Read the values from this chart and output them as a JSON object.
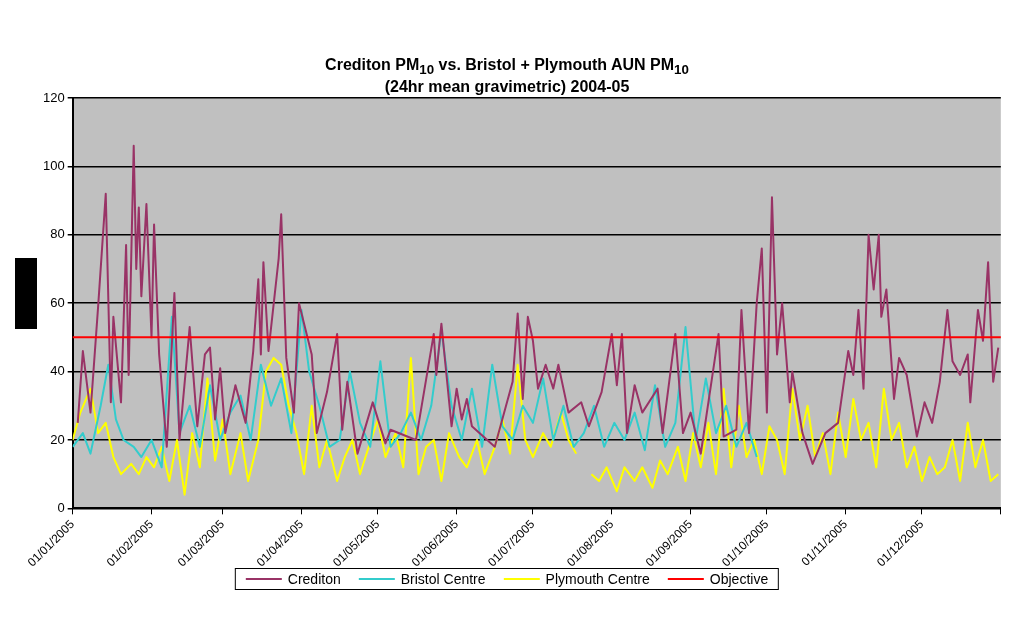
{
  "chart_data": {
    "type": "line",
    "title": "Crediton PM$_{10}$ vs. Bristol + Plymouth AUN PM$_{10}$",
    "subtitle": "(24hr mean gravimetric) 2004-05",
    "ylim": [
      0,
      120
    ],
    "yticks": [
      0,
      20,
      40,
      60,
      80,
      100,
      120
    ],
    "xlim": [
      "2005-01-01",
      "2006-01-01"
    ],
    "xticks": [
      {
        "value": "2005-01-01",
        "label": "01/01/2005"
      },
      {
        "value": "2005-02-01",
        "label": "01/02/2005"
      },
      {
        "value": "2005-03-01",
        "label": "01/03/2005"
      },
      {
        "value": "2005-04-01",
        "label": "01/04/2005"
      },
      {
        "value": "2005-05-01",
        "label": "01/05/2005"
      },
      {
        "value": "2005-06-01",
        "label": "01/06/2005"
      },
      {
        "value": "2005-07-01",
        "label": "01/07/2005"
      },
      {
        "value": "2005-08-01",
        "label": "01/08/2005"
      },
      {
        "value": "2005-09-01",
        "label": "01/09/2005"
      },
      {
        "value": "2005-10-01",
        "label": "01/10/2005"
      },
      {
        "value": "2005-11-01",
        "label": "01/11/2005"
      },
      {
        "value": "2005-12-01",
        "label": "01/12/2005"
      },
      {
        "value": "2006-01-01",
        "label": null
      }
    ],
    "grid": "y",
    "legend": "bottom",
    "marker": "none",
    "line_style": "solid",
    "ref_lines": [
      {
        "axis": "y",
        "value": 50,
        "label": "Objective",
        "color": "#ff0000"
      }
    ],
    "series": [
      {
        "name": "Crediton",
        "color": "#993366",
        "x": [
          "2005-01-03",
          "2005-01-05",
          "2005-01-08",
          "2005-01-11",
          "2005-01-14",
          "2005-01-16",
          "2005-01-17",
          "2005-01-20",
          "2005-01-22",
          "2005-01-23",
          "2005-01-25",
          "2005-01-26",
          "2005-01-27",
          "2005-01-28",
          "2005-01-30",
          "2005-02-01",
          "2005-02-02",
          "2005-02-04",
          "2005-02-07",
          "2005-02-10",
          "2005-02-12",
          "2005-02-16",
          "2005-02-19",
          "2005-02-22",
          "2005-02-24",
          "2005-02-26",
          "2005-02-28",
          "2005-03-02",
          "2005-03-06",
          "2005-03-10",
          "2005-03-13",
          "2005-03-15",
          "2005-03-16",
          "2005-03-17",
          "2005-03-19",
          "2005-03-23",
          "2005-03-24",
          "2005-03-26",
          "2005-03-29",
          "2005-03-31",
          "2005-04-05",
          "2005-04-07",
          "2005-04-11",
          "2005-04-15",
          "2005-04-17",
          "2005-04-19",
          "2005-04-23",
          "2005-04-29",
          "2005-05-04",
          "2005-05-06",
          "2005-05-16",
          "2005-05-23",
          "2005-05-24",
          "2005-05-26",
          "2005-05-28",
          "2005-05-30",
          "2005-06-01",
          "2005-06-03",
          "2005-06-05",
          "2005-06-07",
          "2005-06-16",
          "2005-06-23",
          "2005-06-25",
          "2005-06-27",
          "2005-06-29",
          "2005-07-01",
          "2005-07-03",
          "2005-07-06",
          "2005-07-09",
          "2005-07-11",
          "2005-07-15",
          "2005-07-20",
          "2005-07-23",
          "2005-07-28",
          "2005-08-01",
          "2005-08-03",
          "2005-08-05",
          "2005-08-07",
          "2005-08-10",
          "2005-08-13",
          "2005-08-19",
          "2005-08-21",
          "2005-08-26",
          "2005-08-29",
          "2005-09-01",
          "2005-09-05",
          "2005-09-12",
          "2005-09-14",
          "2005-09-19",
          "2005-09-21",
          "2005-09-24",
          "2005-09-27",
          "2005-09-29",
          "2005-10-01",
          "2005-10-03",
          "2005-10-05",
          "2005-10-07",
          "2005-10-10",
          "2005-10-11",
          "2005-10-15",
          "2005-10-19",
          "2005-10-24",
          "2005-10-29",
          "2005-11-02",
          "2005-11-04",
          "2005-11-06",
          "2005-11-08",
          "2005-11-10",
          "2005-11-12",
          "2005-11-14",
          "2005-11-15",
          "2005-11-17",
          "2005-11-20",
          "2005-11-22",
          "2005-11-25",
          "2005-11-29",
          "2005-12-02",
          "2005-12-05",
          "2005-12-08",
          "2005-12-11",
          "2005-12-13",
          "2005-12-16",
          "2005-12-19",
          "2005-12-20",
          "2005-12-23",
          "2005-12-25",
          "2005-12-27",
          "2005-12-29",
          "2005-12-31"
        ],
        "values": [
          25,
          46,
          28,
          59,
          92,
          31,
          56,
          31,
          77,
          39,
          106,
          70,
          88,
          62,
          89,
          50,
          83,
          45,
          18,
          63,
          20,
          53,
          24,
          45,
          47,
          26,
          41,
          22,
          36,
          25,
          46,
          67,
          45,
          72,
          46,
          73,
          86,
          44,
          28,
          60,
          45,
          22,
          34,
          51,
          23,
          37,
          16,
          31,
          19,
          23,
          20,
          51,
          39,
          54,
          39,
          24,
          35,
          26,
          32,
          24,
          18,
          37,
          57,
          32,
          56,
          49,
          35,
          42,
          35,
          42,
          28,
          31,
          24,
          34,
          51,
          36,
          51,
          22,
          36,
          28,
          35,
          22,
          51,
          22,
          28,
          16,
          51,
          21,
          23,
          58,
          22,
          60,
          76,
          28,
          91,
          45,
          60,
          31,
          40,
          22,
          13,
          22,
          25,
          46,
          39,
          58,
          35,
          80,
          64,
          80,
          56,
          64,
          32,
          44,
          39,
          21,
          31,
          25,
          37,
          58,
          43,
          39,
          45,
          31,
          58,
          49,
          72,
          37,
          47
        ]
      },
      {
        "name": "Bristol Centre",
        "color": "#33cccc",
        "x": [
          "2005-01-01",
          "2005-01-05",
          "2005-01-08",
          "2005-01-12",
          "2005-01-15",
          "2005-01-18",
          "2005-01-21",
          "2005-01-25",
          "2005-01-28",
          "2005-02-01",
          "2005-02-05",
          "2005-02-09",
          "2005-02-12",
          "2005-02-16",
          "2005-02-20",
          "2005-02-24",
          "2005-02-28",
          "2005-03-04",
          "2005-03-08",
          "2005-03-12",
          "2005-03-16",
          "2005-03-20",
          "2005-03-24",
          "2005-03-28",
          "2005-04-01",
          "2005-04-04",
          "2005-04-08",
          "2005-04-12",
          "2005-04-16",
          "2005-04-20",
          "2005-04-24",
          "2005-04-28",
          "2005-05-02",
          "2005-05-06",
          "2005-05-10",
          "2005-05-14",
          "2005-05-18",
          "2005-05-22",
          "2005-05-26",
          "2005-05-30",
          "2005-06-03",
          "2005-06-07",
          "2005-06-11",
          "2005-06-15",
          "2005-06-19",
          "2005-06-23",
          "2005-06-27",
          "2005-07-01",
          "2005-07-05",
          "2005-07-09",
          "2005-07-13",
          "2005-07-17",
          "2005-07-21",
          "2005-07-25",
          "2005-07-29",
          "2005-08-02",
          "2005-08-06",
          "2005-08-10",
          "2005-08-14",
          "2005-08-18",
          "2005-08-22",
          "2005-08-26",
          "2005-08-30",
          "2005-09-03",
          "2005-09-07",
          "2005-09-11",
          "2005-09-15",
          "2005-09-19",
          "2005-09-23",
          "2005-09-27"
        ],
        "values": [
          18,
          22,
          16,
          30,
          42,
          26,
          20,
          18,
          15,
          20,
          12,
          56,
          22,
          30,
          18,
          36,
          20,
          28,
          33,
          20,
          42,
          30,
          38,
          22,
          58,
          40,
          30,
          18,
          20,
          40,
          25,
          18,
          43,
          18,
          22,
          28,
          20,
          30,
          52,
          30,
          20,
          35,
          18,
          42,
          24,
          20,
          30,
          25,
          38,
          20,
          30,
          18,
          22,
          30,
          18,
          25,
          20,
          28,
          17,
          36,
          18,
          25,
          53,
          20,
          38,
          22,
          30,
          18,
          25,
          15
        ]
      },
      {
        "name": "Plymouth Centre",
        "color": "#ffff00",
        "x": [
          "2005-01-01",
          "2005-01-04",
          "2005-01-08",
          "2005-01-11",
          "2005-01-14",
          "2005-01-17",
          "2005-01-20",
          "2005-01-24",
          "2005-01-27",
          "2005-01-30",
          "2005-02-02",
          "2005-02-05",
          "2005-02-08",
          "2005-02-11",
          "2005-02-14",
          "2005-02-17",
          "2005-02-20",
          "2005-02-23",
          "2005-02-26",
          "2005-03-01",
          "2005-03-04",
          "2005-03-08",
          "2005-03-11",
          "2005-03-15",
          "2005-03-18",
          "2005-03-21",
          "2005-03-24",
          "2005-03-27",
          "2005-03-30",
          "2005-04-02",
          "2005-04-05",
          "2005-04-08",
          "2005-04-11",
          "2005-04-15",
          "2005-04-18",
          "2005-04-21",
          "2005-04-24",
          "2005-04-27",
          "2005-05-01",
          "2005-05-04",
          "2005-05-08",
          "2005-05-11",
          "2005-05-14",
          "2005-05-17",
          "2005-05-20",
          "2005-05-23",
          "2005-05-26",
          "2005-05-29",
          "2005-06-02",
          "2005-06-05",
          "2005-06-09",
          "2005-06-12",
          "2005-06-16",
          "2005-06-19",
          "2005-06-22",
          "2005-06-25",
          "2005-06-28",
          "2005-07-01",
          "2005-07-05",
          "2005-07-08",
          "2005-07-12",
          "2005-07-15",
          "2005-07-18",
          "2005-07-20",
          "2005-07-24",
          "2005-07-27",
          "2005-07-30",
          "2005-08-03",
          "2005-08-06",
          "2005-08-10",
          "2005-08-13",
          "2005-08-17",
          "2005-08-20",
          "2005-08-23",
          "2005-08-27",
          "2005-08-30",
          "2005-09-02",
          "2005-09-05",
          "2005-09-08",
          "2005-09-11",
          "2005-09-14",
          "2005-09-17",
          "2005-09-20",
          "2005-09-23",
          "2005-09-26",
          "2005-09-29",
          "2005-10-02",
          "2005-10-05",
          "2005-10-08",
          "2005-10-11",
          "2005-10-14",
          "2005-10-17",
          "2005-10-20",
          "2005-10-23",
          "2005-10-26",
          "2005-10-29",
          "2005-11-01",
          "2005-11-04",
          "2005-11-07",
          "2005-11-10",
          "2005-11-13",
          "2005-11-16",
          "2005-11-19",
          "2005-11-22",
          "2005-11-25",
          "2005-11-28",
          "2005-12-01",
          "2005-12-04",
          "2005-12-07",
          "2005-12-10",
          "2005-12-13",
          "2005-12-16",
          "2005-12-19",
          "2005-12-22",
          "2005-12-25",
          "2005-12-28",
          "2005-12-31"
        ],
        "values": [
          20,
          28,
          35,
          22,
          25,
          15,
          10,
          13,
          10,
          15,
          12,
          18,
          8,
          20,
          4,
          22,
          12,
          38,
          14,
          26,
          10,
          22,
          8,
          20,
          40,
          44,
          42,
          30,
          22,
          10,
          30,
          12,
          20,
          8,
          15,
          20,
          10,
          17,
          26,
          15,
          22,
          12,
          44,
          10,
          18,
          20,
          8,
          22,
          15,
          12,
          20,
          10,
          18,
          26,
          16,
          42,
          20,
          15,
          22,
          18,
          28,
          20,
          16,
          null,
          10,
          8,
          12,
          5,
          12,
          8,
          12,
          6,
          14,
          10,
          18,
          8,
          22,
          12,
          25,
          10,
          35,
          12,
          30,
          15,
          20,
          10,
          24,
          20,
          10,
          35,
          20,
          30,
          15,
          22,
          10,
          28,
          15,
          32,
          20,
          25,
          12,
          35,
          20,
          25,
          12,
          18,
          8,
          15,
          10,
          12,
          20,
          8,
          25,
          12,
          20,
          8,
          10
        ]
      }
    ]
  }
}
